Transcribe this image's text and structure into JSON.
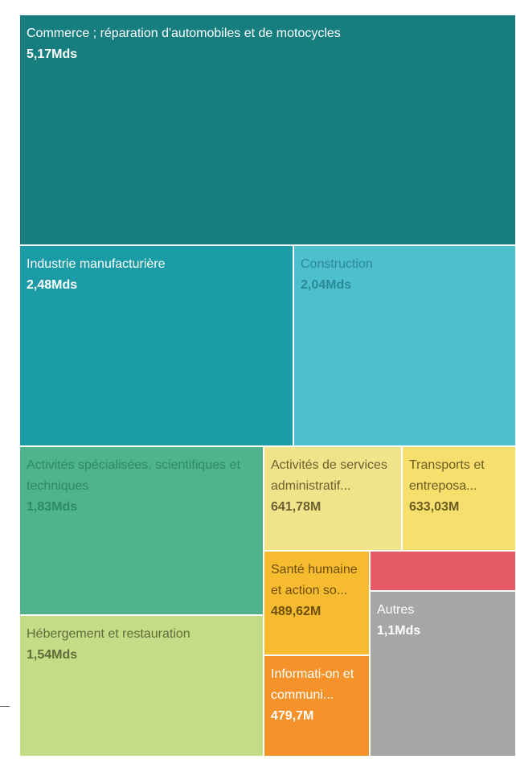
{
  "chart_data": {
    "type": "treemap",
    "title": "",
    "nodes": [
      {
        "label": "Commerce ; réparation d'automobiles et de motocycles",
        "value_label": "5,17Mds",
        "value": 5170000000,
        "color": "#177e7f",
        "text_color": "#ffffff"
      },
      {
        "label": "Industrie manufacturière",
        "value_label": "2,48Mds",
        "value": 2480000000,
        "color": "#1a9ba6",
        "text_color": "#ffffff"
      },
      {
        "label": "Construction",
        "value_label": "2,04Mds",
        "value": 2040000000,
        "color": "#4dbfcd",
        "text_color": "#2a8a95"
      },
      {
        "label": "Activités spécialisées, scientifiques et techniques",
        "value_label": "1,83Mds",
        "value": 1830000000,
        "color": "#4fb38e",
        "text_color": "#2f8a67"
      },
      {
        "label": "Hébergement et restauration",
        "value_label": "1,54Mds",
        "value": 1540000000,
        "color": "#c4dc85",
        "text_color": "#5f6b3a"
      },
      {
        "label": "Activités de services administratif...",
        "value_label": "641,78M",
        "value": 641780000,
        "color": "#f1e38a",
        "text_color": "#6b6130"
      },
      {
        "label": "Transports et entreposa...",
        "value_label": "633,03M",
        "value": 633030000,
        "color": "#f7df6e",
        "text_color": "#6b5c20"
      },
      {
        "label": "Santé humaine et action so...",
        "value_label": "489,62M",
        "value": 489620000,
        "color": "#f6bb2f",
        "text_color": "#6e4f0c"
      },
      {
        "label": "Informati-on et communi...",
        "value_label": "479,7M",
        "value": 479700000,
        "color": "#f5932a",
        "text_color": "#ffffff"
      },
      {
        "label": "",
        "value_label": "",
        "value": null,
        "color": "#e65a63",
        "text_color": "#ffffff"
      },
      {
        "label": "Autres",
        "value_label": "1,1Mds",
        "value": 1100000000,
        "color": "#a7a5a6",
        "text_color": "#ffffff"
      }
    ]
  }
}
